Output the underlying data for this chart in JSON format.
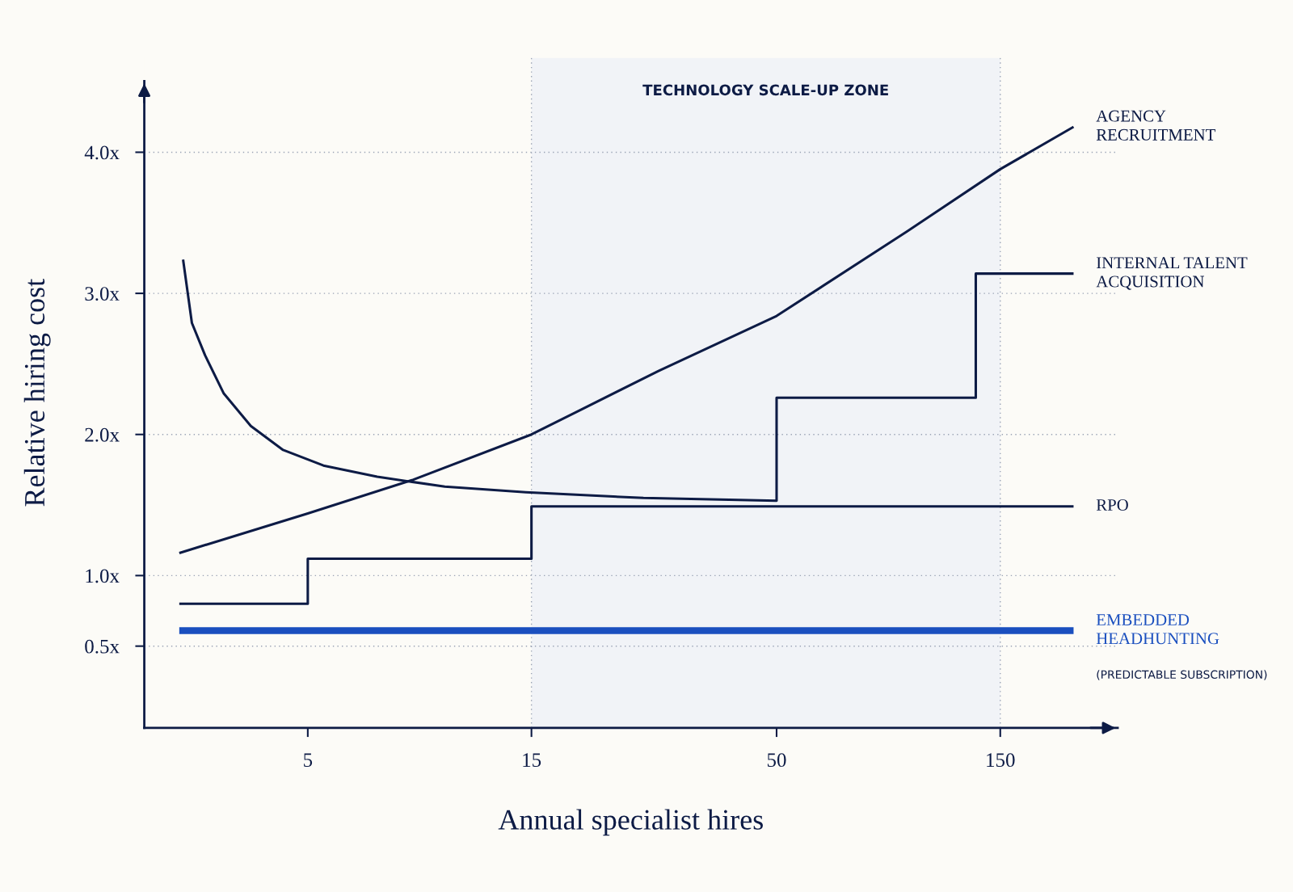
{
  "chart_data": {
    "type": "line",
    "xlabel": "Annual specialist hires",
    "ylabel": "Relative hiring cost",
    "log": "x",
    "xlim": [
      2.24,
      267
    ],
    "xticks": [
      5,
      15,
      50,
      150
    ],
    "ylim": [
      -0.08,
      4.67
    ],
    "yticks": [
      {
        "value": 0.5,
        "label": "0.5x"
      },
      {
        "value": 1.0,
        "label": "1.0x"
      },
      {
        "value": 2.0,
        "label": "2.0x"
      },
      {
        "value": 3.0,
        "label": "3.0x"
      },
      {
        "value": 4.0,
        "label": "4.0x"
      }
    ],
    "grid": "y",
    "legend": false,
    "marker": "none",
    "line_style": "solid",
    "bands": [
      {
        "axis": "x",
        "from": 15,
        "to": 150,
        "label": "TECHNOLOGY SCALE-UP ZONE",
        "color": "#f1f3f7"
      }
    ],
    "ref_lines": [
      {
        "axis": "x",
        "value": 15,
        "color": "#9aa3b5",
        "line_style": "dotted"
      },
      {
        "axis": "x",
        "value": 150,
        "color": "#9aa3b5",
        "line_style": "dotted"
      }
    ],
    "series": [
      {
        "name": "AGENCY\nRECRUITMENT",
        "color": "#0d1b45",
        "x": [
          2.66,
          5,
          8.4,
          15,
          28,
          50,
          95,
          150,
          215
        ],
        "values": [
          1.16,
          1.44,
          1.68,
          2.0,
          2.45,
          2.84,
          3.44,
          3.88,
          4.18
        ]
      },
      {
        "name": "INTERNAL TALENT\nACQUISITION",
        "color": "#0d1b45",
        "x": [
          2.71,
          2.83,
          3.02,
          3.31,
          3.78,
          4.43,
          5.4,
          7.03,
          9.8,
          14.6,
          26,
          50,
          50,
          133,
          133,
          215
        ],
        "values": [
          3.24,
          2.79,
          2.56,
          2.29,
          2.06,
          1.89,
          1.78,
          1.7,
          1.63,
          1.59,
          1.55,
          1.53,
          2.26,
          2.26,
          3.14,
          3.14
        ]
      },
      {
        "name": "RPO",
        "color": "#0d1b45",
        "x": [
          2.66,
          5,
          5,
          15,
          15,
          215
        ],
        "values": [
          0.8,
          0.8,
          1.12,
          1.12,
          1.49,
          1.49
        ]
      },
      {
        "name": "EMBEDDED\nHEADHUNTING",
        "color": "#1a4fbf",
        "x": [
          2.66,
          215
        ],
        "values": [
          0.61,
          0.61
        ]
      }
    ],
    "annotations": [
      "(PREDICTABLE SUBSCRIPTION)"
    ]
  }
}
